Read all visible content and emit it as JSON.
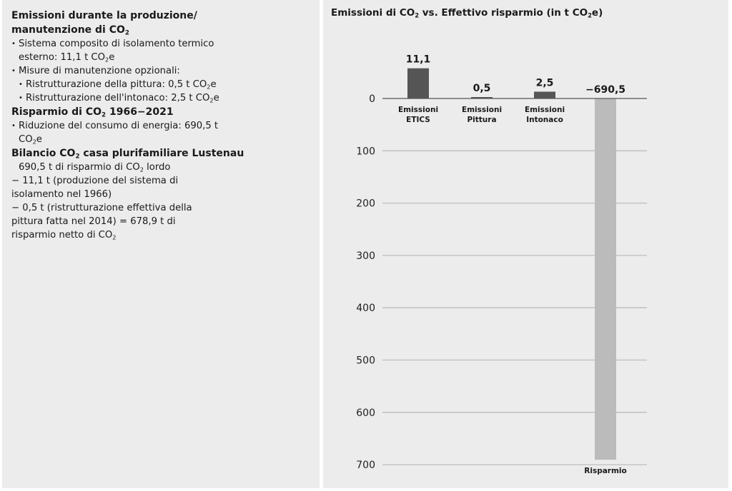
{
  "left_panel": {
    "heading1_line1": "Emissioni durante la produzione/",
    "heading1_line2_pre": "manutenzione di CO",
    "heading1_line2_sub": "2",
    "bullet1_line1": "Sistema composito di isolamento termico",
    "bullet1_line2_pre": "esterno: 11,1 t CO",
    "bullet1_line2_sub": "2",
    "bullet1_line2_post": "e",
    "bullet2": "Misure di manutenzione opzionali:",
    "sub1_pre": "Ristrutturazione della pittura: 0,5 t CO",
    "sub1_sub": "2",
    "sub1_post": "e",
    "sub2_pre": "Ristrutturazione dell'intonaco: 2,5 t CO",
    "sub2_sub": "2",
    "sub2_post": "e",
    "heading2_pre": "Risparmio di CO",
    "heading2_sub": "2",
    "heading2_post": " 1966−2021",
    "bullet3_line1": "Riduzione del consumo di energia: 690,5 t",
    "bullet3_line2_pre": "CO",
    "bullet3_line2_sub": "2",
    "bullet3_line2_post": "e",
    "heading3_pre": "Bilancio CO",
    "heading3_sub": "2",
    "heading3_post": " casa plurifamiliare Lustenau",
    "calc_line1_pre": "690,5 t di risparmio di CO",
    "calc_line1_sub": "2",
    "calc_line1_post": " lordo",
    "calc_line2": "− 11,1 t (produzione del sistema di",
    "calc_line3": "isolamento nel 1966)",
    "calc_line4": "− 0,5 t (ristrutturazione effettiva della",
    "calc_line5": "pittura fatta nel 2014) = 678,9 t di",
    "calc_line6_pre": "risparmio netto di CO",
    "calc_line6_sub": "2",
    "bullet_glyph": "•"
  },
  "chart_data": {
    "type": "bar",
    "title_pre": "Emissioni di CO",
    "title_sub": "2",
    "title_mid": " vs. Effettivo risparmio (in t CO",
    "title_sub2": "2",
    "title_post": "e)",
    "title": "Emissioni di CO2 vs. Effettivo risparmio (in t CO2e)",
    "categories": [
      [
        "Emissioni",
        "ETICS"
      ],
      [
        "Emissioni",
        "Pittura"
      ],
      [
        "Emissioni",
        "Intonaco"
      ],
      [
        "Risparmio"
      ]
    ],
    "values": [
      11.1,
      0.5,
      2.5,
      -690.5
    ],
    "value_labels": [
      "11,1",
      "0,5",
      "2,5",
      "−690,5"
    ],
    "colors": [
      "#555555",
      "#555555",
      "#555555",
      "#bbbbbb"
    ],
    "yticks": [
      0,
      100,
      200,
      300,
      400,
      500,
      600,
      700
    ],
    "ytick_labels": [
      "0",
      "100",
      "200",
      "300",
      "400",
      "500",
      "600",
      "700"
    ],
    "y_inverted_for_negative": true,
    "ylim": [
      -700,
      15
    ],
    "xlabel": "",
    "ylabel": "",
    "grid": true,
    "legend": "none"
  }
}
